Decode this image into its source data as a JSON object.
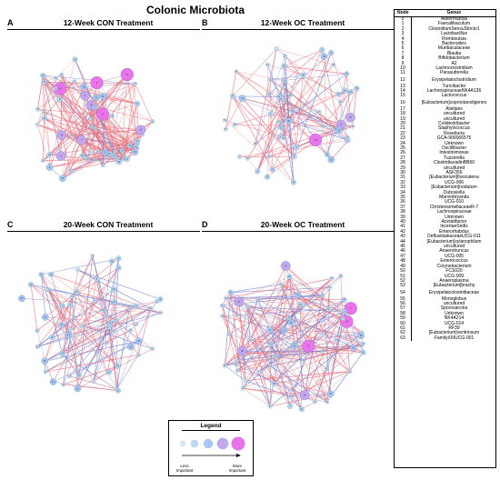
{
  "figure_title": "Colonic Microbiota",
  "panels": [
    {
      "letter": "A",
      "title": "12-Week CON Treatment"
    },
    {
      "letter": "B",
      "title": "12-Week OC Treatment"
    },
    {
      "letter": "C",
      "title": "20-Week CON Treatment"
    },
    {
      "letter": "D",
      "title": "20-Week OC Treatment"
    }
  ],
  "legend": {
    "title": "Legend",
    "low_label_1": "Less",
    "low_label_2": "Important",
    "high_label_1": "More",
    "high_label_2": "Important",
    "colors": [
      "#d9ecf6",
      "#b9dbf2",
      "#a9c8ef",
      "#c3a6ee",
      "#ea73ea"
    ]
  },
  "colors": {
    "edge_positive": "#ee6f78",
    "edge_negative": "#6f86d8",
    "node_stroke": "#5b7fb6"
  },
  "table": {
    "header_node": "Node",
    "header_genus": "Genus",
    "rows": [
      {
        "node": "0",
        "genus": "Akkermansia"
      },
      {
        "node": "1",
        "genus": "Faecalibaculum"
      },
      {
        "node": "2",
        "genus": "ClostridiumSensuStricto1"
      },
      {
        "node": "3",
        "genus": "Lactobacillus"
      },
      {
        "node": "4",
        "genus": "Romboutsia"
      },
      {
        "node": "5",
        "genus": "Bacteroides"
      },
      {
        "node": "6",
        "genus": "Muribaculaceae"
      },
      {
        "node": "7",
        "genus": "Blautia"
      },
      {
        "node": "8",
        "genus": "Bifidobacterium"
      },
      {
        "node": "9",
        "genus": "A2"
      },
      {
        "node": "10",
        "genus": "Lachnoclostridium"
      },
      {
        "node": "11",
        "genus": "Parasutterella"
      },
      {
        "node": "12",
        "genus": "Erysipelatoclostridium"
      },
      {
        "node": "13",
        "genus": "Turicibacter"
      },
      {
        "node": "14",
        "genus": "LachnospiraceaeNK4A136"
      },
      {
        "node": "15",
        "genus": "Lactococcus"
      },
      {
        "node": "16",
        "genus": "[Eubacterium]coprostanoligenes"
      },
      {
        "node": "17",
        "genus": "Alistipes"
      },
      {
        "node": "18",
        "genus": "uncultured"
      },
      {
        "node": "19",
        "genus": "uncultured"
      },
      {
        "node": "20",
        "genus": "Colidextribacter"
      },
      {
        "node": "21",
        "genus": "Staphylococcus"
      },
      {
        "node": "22",
        "genus": "Roseburia"
      },
      {
        "node": "23",
        "genus": "GCA-900066575"
      },
      {
        "node": "24",
        "genus": "Unknown"
      },
      {
        "node": "25",
        "genus": "Oscillibacter"
      },
      {
        "node": "26",
        "genus": "Intestinimonas"
      },
      {
        "node": "27",
        "genus": "Tuzzerella"
      },
      {
        "node": "28",
        "genus": "ClostridiavadinBB60"
      },
      {
        "node": "29",
        "genus": "uncultured"
      },
      {
        "node": "30",
        "genus": "ASF356"
      },
      {
        "node": "31",
        "genus": "[Eubacterium]fissicatena"
      },
      {
        "node": "32",
        "genus": "UCG-006"
      },
      {
        "node": "33",
        "genus": "[Eubacterium]nodatum"
      },
      {
        "node": "34",
        "genus": "Dubosiella"
      },
      {
        "node": "35",
        "genus": "Marvinbryantia"
      },
      {
        "node": "36",
        "genus": "UCG-010"
      },
      {
        "node": "37",
        "genus": "ChristensenellaceaeR-7"
      },
      {
        "node": "38",
        "genus": "Lachnospiraceae"
      },
      {
        "node": "39",
        "genus": "Unknown"
      },
      {
        "node": "40",
        "genus": "Acetatifactor"
      },
      {
        "node": "41",
        "genus": "IncertaeSedis"
      },
      {
        "node": "42",
        "genus": "Enterorhabdus"
      },
      {
        "node": "43",
        "genus": "DefluviitaleaceaeUCG-011"
      },
      {
        "node": "44",
        "genus": "[Eubacterium]xylanophilum"
      },
      {
        "node": "45",
        "genus": "uncultured"
      },
      {
        "node": "46",
        "genus": "Anaerotruncus"
      },
      {
        "node": "47",
        "genus": "UCG-005"
      },
      {
        "node": "48",
        "genus": "Enterococcus"
      },
      {
        "node": "49",
        "genus": "Corynebacterium"
      },
      {
        "node": "50",
        "genus": "FCS020"
      },
      {
        "node": "51",
        "genus": "UCG-009"
      },
      {
        "node": "52",
        "genus": "Anaeroplasma"
      },
      {
        "node": "53",
        "genus": "[Eubacterium]brachy"
      },
      {
        "node": "54",
        "genus": "Erysipelatoclostridiaceae"
      },
      {
        "node": "55",
        "genus": "Monoglobus"
      },
      {
        "node": "56",
        "genus": "uncultured"
      },
      {
        "node": "57",
        "genus": "Sporosarcina"
      },
      {
        "node": "58",
        "genus": "Unknown"
      },
      {
        "node": "59",
        "genus": "NK4A214"
      },
      {
        "node": "60",
        "genus": "UCG-014"
      },
      {
        "node": "61",
        "genus": "RF39"
      },
      {
        "node": "62",
        "genus": "[Eubacterium]ventriosum"
      },
      {
        "node": "63",
        "genus": "FamilyXIIIUCG-001"
      }
    ]
  }
}
